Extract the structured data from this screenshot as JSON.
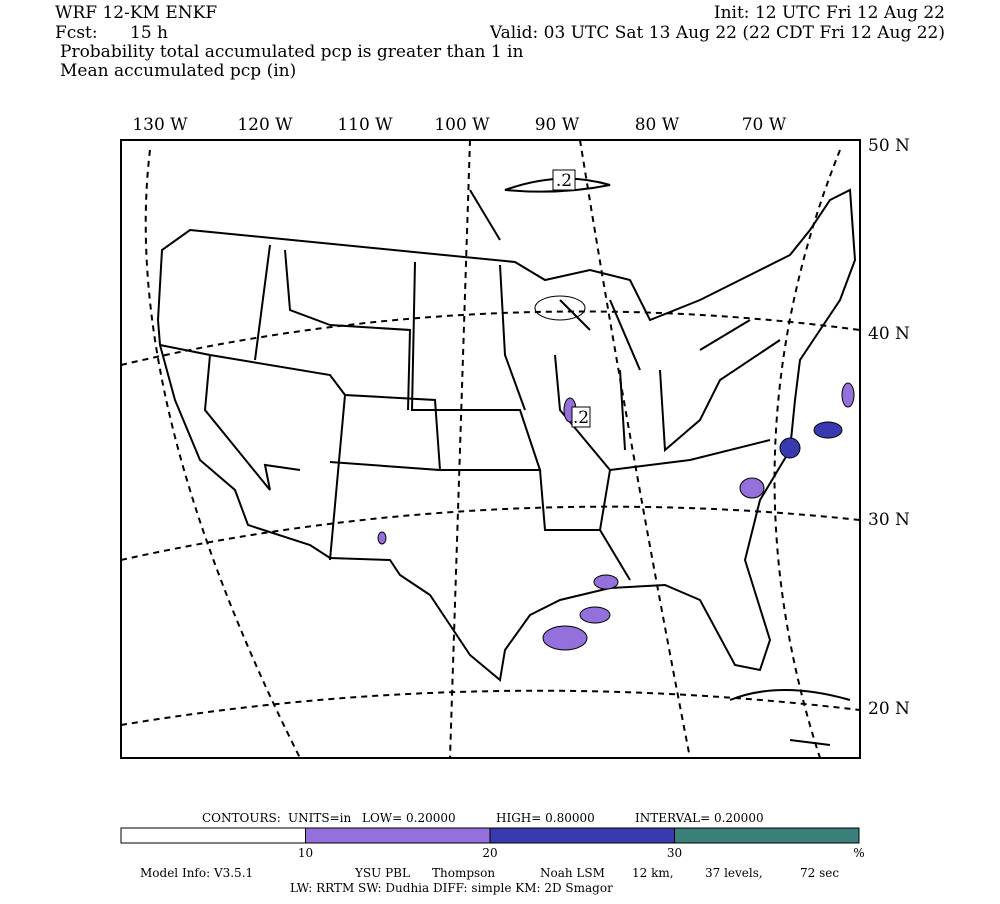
{
  "header": {
    "model": "WRF 12-KM ENKF",
    "init": "Init: 12 UTC Fri 12 Aug 22",
    "fcst_label": "Fcst:",
    "fcst_value": "15 h",
    "valid": "Valid: 03 UTC Sat 13 Aug 22 (22 CDT Fri 12 Aug 22)",
    "line3": "Probability total accumulated pcp is greater than 1 in",
    "line4": "Mean accumulated pcp (in)"
  },
  "map": {
    "lon_labels": [
      "130 W",
      "120 W",
      "110 W",
      "100 W",
      "90 W",
      "80 W",
      "70 W"
    ],
    "lat_labels": [
      "50 N",
      "40 N",
      "30 N",
      "20 N"
    ],
    "contour_labels": [
      ".2",
      ".2"
    ]
  },
  "contour_info": {
    "contours": "CONTOURS:",
    "units": "UNITS=in",
    "low": "LOW= 0.20000",
    "high": "HIGH= 0.80000",
    "interval": "INTERVAL= 0.20000"
  },
  "colorbar": {
    "colors": [
      "#ffffff",
      "#9370db",
      "#3a3ab0",
      "#3a7f78"
    ],
    "labels": [
      "10",
      "20",
      "30",
      "%"
    ]
  },
  "footer": {
    "line1": [
      "Model Info: V3.5.1",
      "YSU PBL",
      "Thompson",
      "Noah LSM",
      "12 km,",
      "37 levels,",
      "72 sec"
    ],
    "line2": "LW: RRTM SW: Dudhia  DIFF: simple KM: 2D Smagor"
  }
}
